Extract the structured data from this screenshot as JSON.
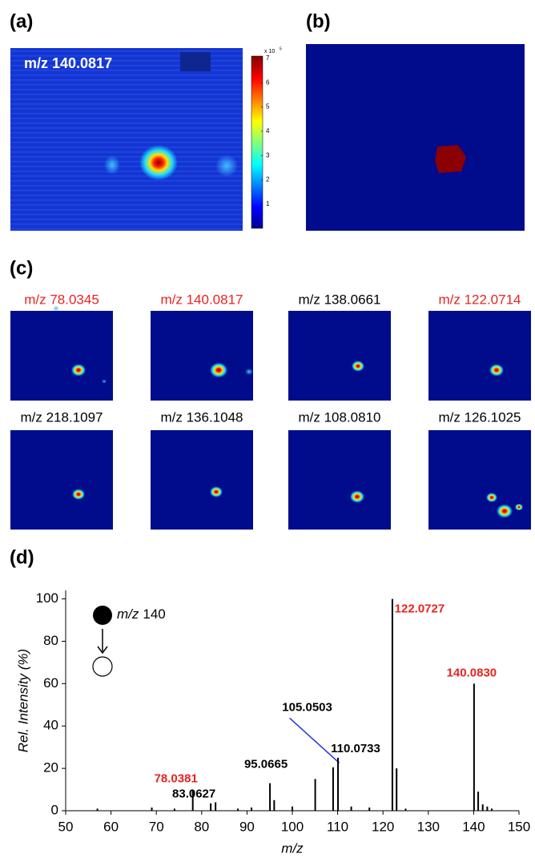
{
  "panel_labels": [
    "(a)",
    "(b)",
    "(c)",
    "(d)"
  ],
  "panel_a": {
    "label": "m/z 140.0817",
    "colorbar": {
      "ticks": [
        1,
        2,
        3,
        4,
        5,
        6,
        7
      ],
      "lim": [
        0,
        7.1
      ],
      "scale": "x 10",
      "exponent": "5"
    }
  },
  "panel_c": {
    "images": [
      {
        "label": "m/z 78.0345",
        "color": "#e8231f"
      },
      {
        "label": "m/z 140.0817",
        "color": "#e8231f"
      },
      {
        "label": "m/z 138.0661",
        "color": "#000000"
      },
      {
        "label": "m/z 122.0714",
        "color": "#e8231f"
      },
      {
        "label": "m/z 218.1097",
        "color": "#000000"
      },
      {
        "label": "m/z 136.1048",
        "color": "#000000"
      },
      {
        "label": "m/z 108.0810",
        "color": "#000000"
      },
      {
        "label": "m/z 126.1025",
        "color": "#000000"
      }
    ]
  },
  "chart_data": {
    "type": "bar",
    "x": [
      57,
      69,
      74,
      78.0381,
      82,
      83.0627,
      88,
      91,
      95.0665,
      96,
      100,
      105.0503,
      109,
      110.0733,
      113,
      117,
      122.0727,
      123,
      125,
      140.083,
      141,
      142,
      143,
      144
    ],
    "values": [
      1,
      1.5,
      1,
      10,
      3.5,
      4,
      1,
      1.5,
      13,
      5,
      2,
      15,
      20.5,
      25,
      2,
      1.5,
      100,
      20,
      1,
      60,
      9,
      3,
      2,
      1
    ],
    "x_labels": [
      null,
      null,
      null,
      "78.0381",
      null,
      "83.0627",
      null,
      null,
      "95.0665",
      null,
      null,
      "105.0503",
      null,
      "110.0733",
      null,
      null,
      "122.0727",
      null,
      null,
      "140.0830",
      null,
      null,
      null,
      null
    ],
    "label_colors": [
      null,
      null,
      null,
      "#e8231f",
      null,
      "#000000",
      null,
      null,
      "#000000",
      null,
      null,
      "#000000",
      null,
      "#000000",
      null,
      null,
      "#e8231f",
      null,
      null,
      "#e8231f",
      null,
      null,
      null,
      null
    ],
    "color": "#000000",
    "xlim": [
      50,
      150
    ],
    "ylim": [
      0,
      104
    ],
    "xticks": [
      50,
      60,
      70,
      80,
      90,
      100,
      110,
      120,
      130,
      140,
      150
    ],
    "yticks": [
      0,
      20,
      40,
      60,
      80,
      100
    ],
    "xlabel": "m/z",
    "ylabel": "Rel. Intensity (%)",
    "precursor": {
      "italic": "m/z",
      "text": "140"
    }
  }
}
